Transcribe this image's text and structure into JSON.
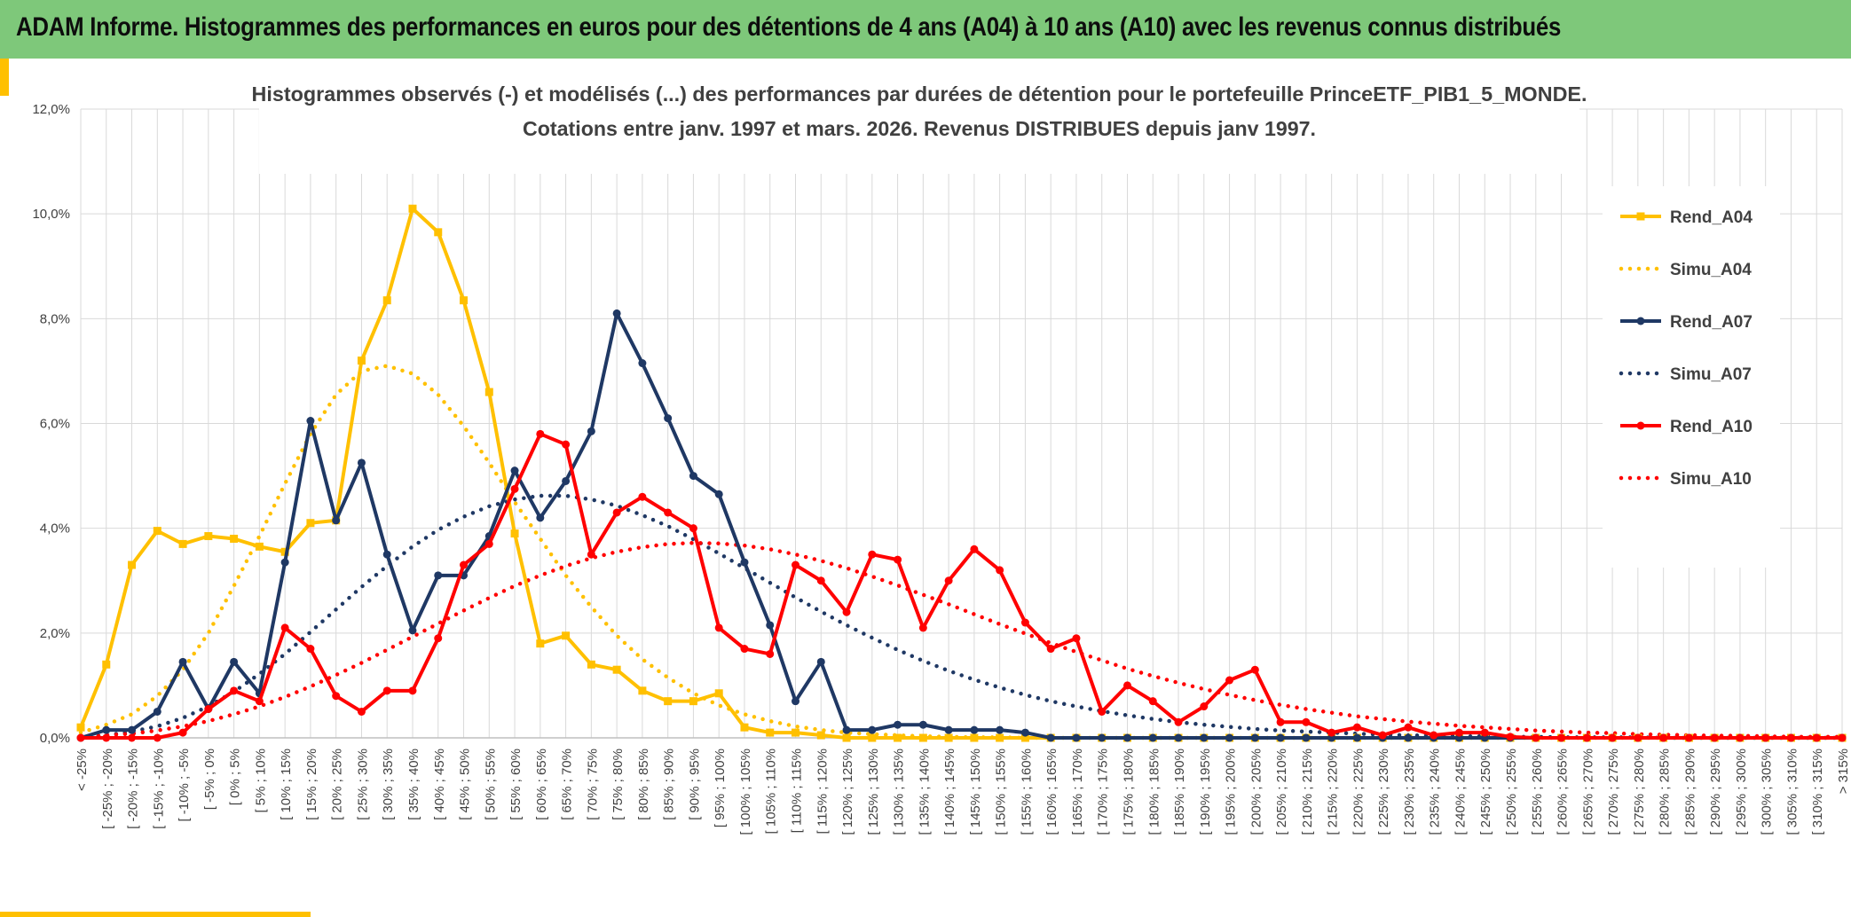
{
  "header": {
    "title": "ADAM Informe. Histogrammes des performances en euros pour des détentions de 4 ans (A04) à 10 ans (A10) avec les revenus connus distribués"
  },
  "chart_data": {
    "type": "line",
    "title_line1": "Histogrammes observés (-) et modélisés (...) des performances par durées de détention pour le portefeuille PrinceETF_PIB1_5_MONDE.",
    "title_line2": "Cotations entre janv. 1997 et mars. 2026. Revenus DISTRIBUES depuis janv 1997.",
    "ylim": [
      0,
      12
    ],
    "y_ticks": [
      "0,0%",
      "2,0%",
      "4,0%",
      "6,0%",
      "8,0%",
      "10,0%",
      "12,0%"
    ],
    "grid": true,
    "legend_position": "right",
    "categories": [
      "< -25%",
      "[ -25% ; -20%",
      "[ -20% ; -15%",
      "[ -15% ; -10%",
      "[ -10% ; -5%",
      "[ -5% ; 0%",
      "[ 0% ; 5%",
      "[ 5% ; 10%",
      "[ 10% ; 15%",
      "[ 15% ; 20%",
      "[ 20% ; 25%",
      "[ 25% ; 30%",
      "[ 30% ; 35%",
      "[ 35% ; 40%",
      "[ 40% ; 45%",
      "[ 45% ; 50%",
      "[ 50% ; 55%",
      "[ 55% ; 60%",
      "[ 60% ; 65%",
      "[ 65% ; 70%",
      "[ 70% ; 75%",
      "[ 75% ; 80%",
      "[ 80% ; 85%",
      "[ 85% ; 90%",
      "[ 90% ; 95%",
      "[ 95% ; 100%",
      "[ 100% ; 105%",
      "[ 105% ; 110%",
      "[ 110% ; 115%",
      "[ 115% ; 120%",
      "[ 120% ; 125%",
      "[ 125% ; 130%",
      "[ 130% ; 135%",
      "[ 135% ; 140%",
      "[ 140% ; 145%",
      "[ 145% ; 150%",
      "[ 150% ; 155%",
      "[ 155% ; 160%",
      "[ 160% ; 165%",
      "[ 165% ; 170%",
      "[ 170% ; 175%",
      "[ 175% ; 180%",
      "[ 180% ; 185%",
      "[ 185% ; 190%",
      "[ 190% ; 195%",
      "[ 195% ; 200%",
      "[ 200% ; 205%",
      "[ 205% ; 210%",
      "[ 210% ; 215%",
      "[ 215% ; 220%",
      "[ 220% ; 225%",
      "[ 225% ; 230%",
      "[ 230% ; 235%",
      "[ 235% ; 240%",
      "[ 240% ; 245%",
      "[ 245% ; 250%",
      "[ 250% ; 255%",
      "[ 255% ; 260%",
      "[ 260% ; 265%",
      "[ 265% ; 270%",
      "[ 270% ; 275%",
      "[ 275% ; 280%",
      "[ 280% ; 285%",
      "[ 285% ; 290%",
      "[ 290% ; 295%",
      "[ 295% ; 300%",
      "[ 300% ; 305%",
      "[ 305% ; 310%",
      "[ 310% ; 315%",
      "> 315%"
    ],
    "series": [
      {
        "name": "Rend_A04",
        "color": "#ffc000",
        "style": "solid",
        "marker": "square",
        "values": [
          0.2,
          1.4,
          3.3,
          3.95,
          3.7,
          3.85,
          3.8,
          3.65,
          3.55,
          4.1,
          4.15,
          7.2,
          8.35,
          10.1,
          9.65,
          8.35,
          6.6,
          3.9,
          1.8,
          1.95,
          1.4,
          1.3,
          0.9,
          0.7,
          0.7,
          0.85,
          0.2,
          0.1,
          0.1,
          0.05,
          0,
          0,
          0,
          0,
          0,
          0,
          0,
          0,
          0,
          0,
          0,
          0,
          0,
          0,
          0,
          0,
          0,
          0,
          0,
          0,
          0,
          0,
          0,
          0,
          0,
          0,
          0,
          0,
          0,
          0,
          0,
          0,
          0,
          0,
          0,
          0,
          0,
          0,
          0,
          0
        ]
      },
      {
        "name": "Simu_A04",
        "color": "#ffc000",
        "style": "dotted",
        "values": [
          0.1,
          0.25,
          0.45,
          0.8,
          1.3,
          2.0,
          2.9,
          3.85,
          4.85,
          5.8,
          6.55,
          7.0,
          7.1,
          6.95,
          6.55,
          5.95,
          5.25,
          4.5,
          3.8,
          3.1,
          2.5,
          1.95,
          1.5,
          1.15,
          0.85,
          0.62,
          0.45,
          0.32,
          0.22,
          0.15,
          0.1,
          0.07,
          0.05,
          0.03,
          0.02,
          0.01,
          0.01,
          0,
          0,
          0,
          0,
          0,
          0,
          0,
          0,
          0,
          0,
          0,
          0,
          0,
          0,
          0,
          0,
          0,
          0,
          0,
          0,
          0,
          0,
          0,
          0,
          0,
          0,
          0,
          0,
          0,
          0,
          0,
          0,
          0
        ]
      },
      {
        "name": "Rend_A07",
        "color": "#1f3864",
        "style": "solid",
        "marker": "circle",
        "values": [
          0,
          0.15,
          0.15,
          0.5,
          1.45,
          0.55,
          1.45,
          0.85,
          3.35,
          6.05,
          4.15,
          5.25,
          3.5,
          2.05,
          3.1,
          3.1,
          3.85,
          5.1,
          4.2,
          4.9,
          5.85,
          8.1,
          7.15,
          6.1,
          5.0,
          4.65,
          3.35,
          2.15,
          0.7,
          1.45,
          0.15,
          0.15,
          0.25,
          0.25,
          0.15,
          0.15,
          0.15,
          0.1,
          0,
          0,
          0,
          0,
          0,
          0,
          0,
          0,
          0,
          0,
          0,
          0,
          0,
          0,
          0,
          0,
          0,
          0,
          0,
          0,
          0,
          0,
          0,
          0,
          0,
          0,
          0,
          0,
          0,
          0,
          0,
          0
        ]
      },
      {
        "name": "Simu_A07",
        "color": "#1f3864",
        "style": "dotted",
        "values": [
          0.02,
          0.05,
          0.12,
          0.22,
          0.38,
          0.6,
          0.88,
          1.22,
          1.6,
          2.02,
          2.45,
          2.88,
          3.28,
          3.65,
          3.97,
          4.22,
          4.42,
          4.55,
          4.62,
          4.62,
          4.55,
          4.43,
          4.25,
          4.04,
          3.79,
          3.52,
          3.24,
          2.96,
          2.68,
          2.41,
          2.15,
          1.91,
          1.68,
          1.47,
          1.28,
          1.11,
          0.96,
          0.82,
          0.7,
          0.6,
          0.51,
          0.43,
          0.36,
          0.3,
          0.25,
          0.21,
          0.17,
          0.14,
          0.12,
          0.1,
          0.08,
          0.06,
          0.05,
          0.04,
          0.03,
          0.03,
          0.02,
          0.02,
          0.01,
          0.01,
          0.01,
          0.01,
          0,
          0,
          0,
          0,
          0,
          0,
          0,
          0
        ]
      },
      {
        "name": "Rend_A10",
        "color": "#ff0000",
        "style": "solid",
        "marker": "circle",
        "values": [
          0,
          0,
          0,
          0,
          0.1,
          0.55,
          0.9,
          0.7,
          2.1,
          1.7,
          0.8,
          0.5,
          0.9,
          0.9,
          1.9,
          3.3,
          3.7,
          4.75,
          5.8,
          5.6,
          3.5,
          4.3,
          4.6,
          4.3,
          4.0,
          2.1,
          1.7,
          1.6,
          3.3,
          3.0,
          2.4,
          3.5,
          3.4,
          2.1,
          3.0,
          3.6,
          3.2,
          2.2,
          1.7,
          1.9,
          0.5,
          1.0,
          0.7,
          0.3,
          0.6,
          1.1,
          1.3,
          0.3,
          0.3,
          0.1,
          0.2,
          0.05,
          0.2,
          0.05,
          0.1,
          0.1,
          0.02,
          0,
          0,
          0,
          0,
          0,
          0,
          0,
          0,
          0,
          0,
          0,
          0,
          0
        ]
      },
      {
        "name": "Simu_A10",
        "color": "#ff0000",
        "style": "dotted",
        "values": [
          0.02,
          0.05,
          0.08,
          0.14,
          0.22,
          0.32,
          0.45,
          0.6,
          0.78,
          0.98,
          1.2,
          1.43,
          1.68,
          1.93,
          2.18,
          2.43,
          2.67,
          2.9,
          3.1,
          3.28,
          3.43,
          3.55,
          3.64,
          3.7,
          3.72,
          3.71,
          3.67,
          3.6,
          3.5,
          3.38,
          3.24,
          3.08,
          2.91,
          2.73,
          2.55,
          2.36,
          2.17,
          1.99,
          1.81,
          1.64,
          1.48,
          1.32,
          1.18,
          1.05,
          0.93,
          0.82,
          0.72,
          0.63,
          0.55,
          0.48,
          0.41,
          0.36,
          0.31,
          0.27,
          0.23,
          0.2,
          0.17,
          0.14,
          0.12,
          0.1,
          0.09,
          0.07,
          0.06,
          0.05,
          0.04,
          0.04,
          0.03,
          0.02,
          0.02,
          0.02
        ]
      }
    ]
  }
}
